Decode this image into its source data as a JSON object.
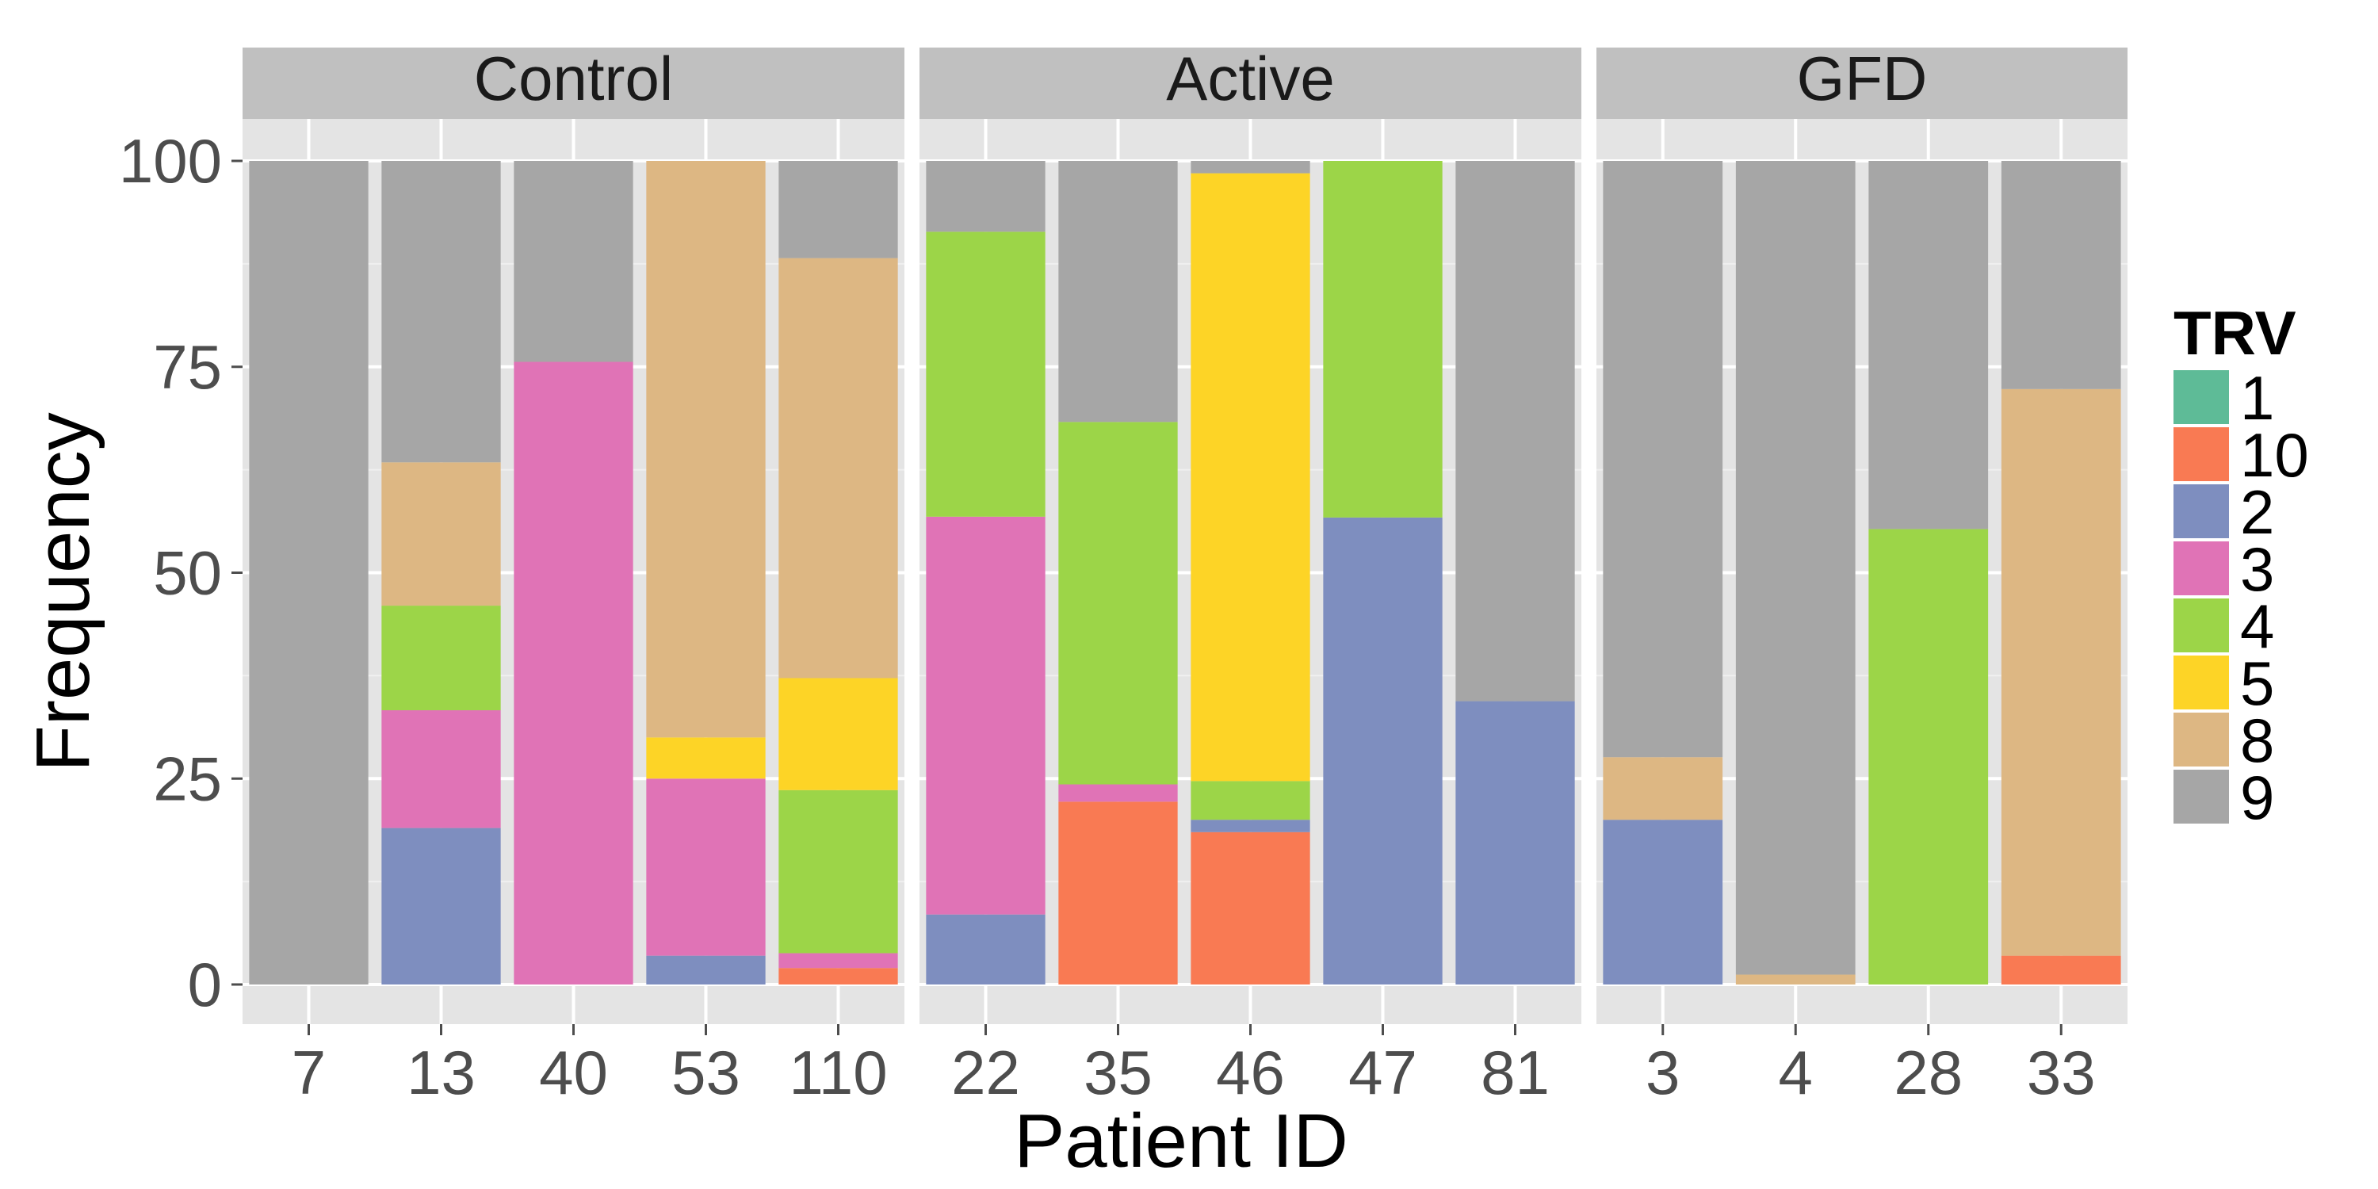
{
  "chart_data": {
    "type": "bar",
    "stacked": true,
    "faceted": true,
    "xlabel": "Patient ID",
    "ylabel": "Frequency",
    "ylim": [
      0,
      100
    ],
    "yticks": [
      "0",
      "25",
      "50",
      "75",
      "100"
    ],
    "grid": true,
    "legend": {
      "title": "TRV",
      "position": "right",
      "entries": [
        {
          "label": "1",
          "color": "#5EBB97"
        },
        {
          "label": "10",
          "color": "#F97A53"
        },
        {
          "label": "2",
          "color": "#7E8EBF"
        },
        {
          "label": "3",
          "color": "#E073B6"
        },
        {
          "label": "4",
          "color": "#9CD548"
        },
        {
          "label": "5",
          "color": "#FDD426"
        },
        {
          "label": "8",
          "color": "#DDB783"
        },
        {
          "label": "9",
          "color": "#A6A6A6"
        }
      ]
    },
    "stack_order": [
      "10",
      "2",
      "3",
      "4",
      "5",
      "8",
      "9"
    ],
    "panels": [
      {
        "title": "Control",
        "categories": [
          "7",
          "13",
          "40",
          "53",
          "110"
        ],
        "bars": [
          {
            "10": 0,
            "2": 0,
            "3": 0,
            "4": 0,
            "5": 0,
            "8": 0,
            "9": 100
          },
          {
            "10": 0,
            "2": 19,
            "3": 14.3,
            "4": 12.7,
            "5": 0,
            "8": 17.4,
            "9": 36.6
          },
          {
            "10": 0,
            "2": 0,
            "3": 75.6,
            "4": 0,
            "5": 0,
            "8": 0,
            "9": 24.4
          },
          {
            "10": 0,
            "2": 3.5,
            "3": 21.5,
            "4": 0,
            "5": 5,
            "8": 70,
            "9": 0
          },
          {
            "10": 2,
            "2": 0,
            "3": 1.8,
            "4": 19.8,
            "5": 13.6,
            "8": 51,
            "9": 11.8
          }
        ]
      },
      {
        "title": "Active",
        "categories": [
          "22",
          "35",
          "46",
          "47",
          "81"
        ],
        "bars": [
          {
            "10": 0,
            "2": 8.5,
            "3": 48.3,
            "4": 34.6,
            "5": 0,
            "8": 0,
            "9": 8.6
          },
          {
            "10": 22.2,
            "2": 0,
            "3": 2.1,
            "4": 44,
            "5": 0,
            "8": 0,
            "9": 31.7
          },
          {
            "10": 18.5,
            "2": 1.5,
            "3": 0,
            "4": 4.7,
            "5": 73.8,
            "8": 0,
            "9": 1.5
          },
          {
            "10": 0,
            "2": 56.7,
            "3": 0,
            "4": 43.3,
            "5": 0,
            "8": 0,
            "9": 0
          },
          {
            "10": 0,
            "2": 34.4,
            "3": 0,
            "4": 0,
            "5": 0,
            "8": 0,
            "9": 65.6
          }
        ]
      },
      {
        "title": "GFD",
        "categories": [
          "3",
          "4",
          "28",
          "33"
        ],
        "bars": [
          {
            "10": 0,
            "2": 20,
            "3": 0,
            "4": 0,
            "5": 0,
            "8": 7.6,
            "9": 72.4
          },
          {
            "10": 0,
            "2": 0,
            "3": 0,
            "4": 0,
            "5": 0,
            "8": 1.2,
            "9": 98.8
          },
          {
            "10": 0,
            "2": 0,
            "3": 0,
            "4": 55.3,
            "5": 0,
            "8": 0,
            "9": 44.7
          },
          {
            "10": 3.5,
            "2": 0,
            "3": 0,
            "4": 0,
            "5": 0,
            "8": 68.8,
            "9": 27.7
          }
        ]
      }
    ]
  }
}
